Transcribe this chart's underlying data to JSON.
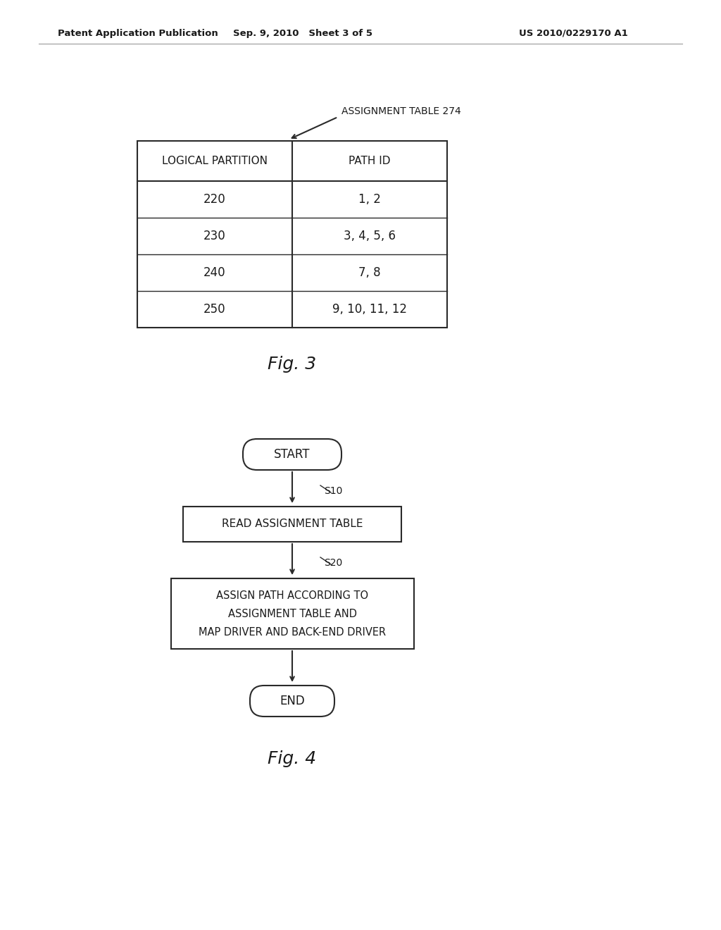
{
  "background_color": "#ffffff",
  "header_text_left": "Patent Application Publication",
  "header_text_mid": "Sep. 9, 2010   Sheet 3 of 5",
  "header_text_right": "US 2010/0229170 A1",
  "table_label": "ASSIGNMENT TABLE 274",
  "table_col1_header": "LOGICAL PARTITION",
  "table_col2_header": "PATH ID",
  "table_rows": [
    [
      "220",
      "1, 2"
    ],
    [
      "230",
      "3, 4, 5, 6"
    ],
    [
      "240",
      "7, 8"
    ],
    [
      "250",
      "9, 10, 11, 12"
    ]
  ],
  "fig3_label": "Fig. 3",
  "fig4_label": "Fig. 4",
  "flowchart_start_label": "START",
  "flowchart_end_label": "END",
  "flowchart_step1_label": "READ ASSIGNMENT TABLE",
  "flowchart_step2_line1": "ASSIGN PATH ACCORDING TO",
  "flowchart_step2_line2": "ASSIGNMENT TABLE AND",
  "flowchart_step2_line3": "MAP DRIVER AND BACK-END DRIVER",
  "step1_tag": "S10",
  "step2_tag": "S20",
  "font_color": "#1a1a1a",
  "line_color": "#2a2a2a"
}
